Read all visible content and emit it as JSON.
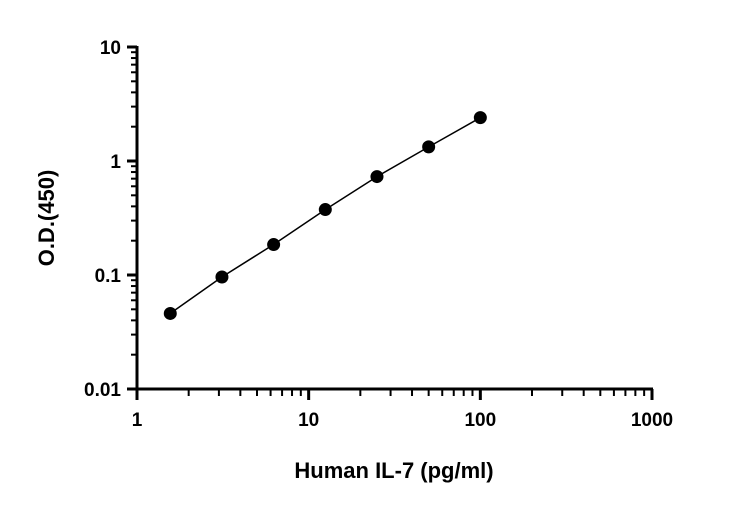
{
  "chart_data": {
    "type": "scatter",
    "title": "",
    "xlabel": "Human IL-7 (pg/ml)",
    "ylabel": "O.D.(450)",
    "xscale": "log",
    "yscale": "log",
    "xlim": [
      1,
      1000
    ],
    "ylim": [
      0.01,
      10
    ],
    "xticks": [
      1,
      10,
      100,
      1000
    ],
    "xtick_labels": [
      "1",
      "10",
      "100",
      "1000"
    ],
    "yticks": [
      0.01,
      0.1,
      1,
      10
    ],
    "ytick_labels": [
      "0.01",
      "0.1",
      "1",
      "10"
    ],
    "grid": false,
    "legend": "none",
    "series": [
      {
        "x": [
          1.5625,
          3.125,
          6.25,
          12.5,
          25,
          50,
          100
        ],
        "y": [
          0.046,
          0.096,
          0.185,
          0.375,
          0.73,
          1.33,
          2.4
        ],
        "marker": "circle",
        "color": "#000000",
        "fit_line": true
      }
    ]
  }
}
